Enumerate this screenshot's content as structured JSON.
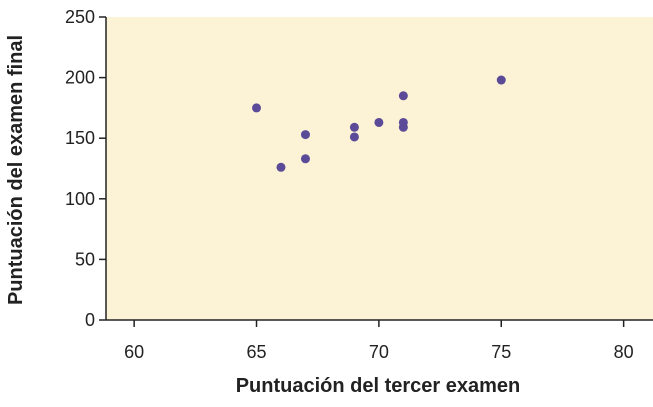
{
  "chart_data": {
    "type": "scatter",
    "x_label": "Puntuación del tercer examen",
    "y_label": "Puntuación del examen final",
    "x": [
      65,
      67,
      71,
      71,
      66,
      75,
      67,
      70,
      71,
      69,
      69
    ],
    "values": [
      175,
      133,
      185,
      163,
      126,
      198,
      153,
      163,
      159,
      151,
      159
    ],
    "color": "#5a4a98",
    "background": "#fcf2d6",
    "xlim": [
      58.85,
      81.2
    ],
    "xticks": [
      60,
      65,
      70,
      75,
      80
    ],
    "ylim": [
      0,
      250
    ],
    "yticks": [
      0,
      50,
      100,
      150,
      200,
      250
    ]
  }
}
